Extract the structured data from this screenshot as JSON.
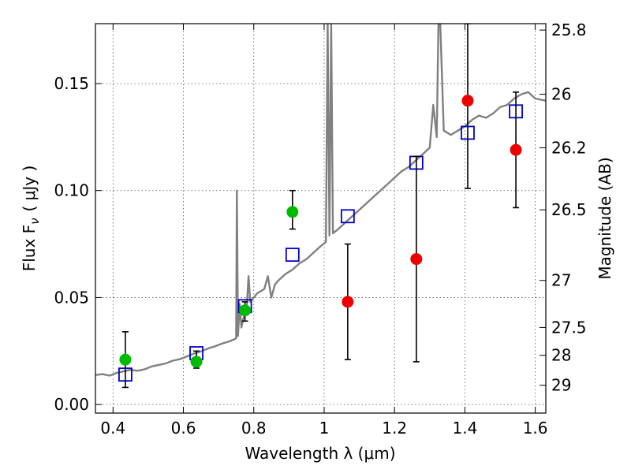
{
  "chart_data": {
    "type": "scatter",
    "xlabel": "Wavelength  λ (μm)",
    "ylabel": "Flux  F",
    "ylabel_subscript": "ν",
    "ylabel_unit": "( μJy )",
    "ylabel_right": "Magnitude (AB)",
    "xlim": [
      0.35,
      1.63
    ],
    "ylim": [
      -0.004,
      0.178
    ],
    "grid": true,
    "x_ticks": [
      0.4,
      0.6,
      0.8,
      1.0,
      1.2,
      1.4,
      1.6
    ],
    "x_tick_labels": [
      "0.4",
      "0.6",
      "0.8",
      "1",
      "1.2",
      "1.4",
      "1.6"
    ],
    "y_ticks": [
      0.0,
      0.05,
      0.1,
      0.15
    ],
    "y_tick_labels": [
      "0.00",
      "0.05",
      "0.10",
      "0.15"
    ],
    "right_ticks": [
      {
        "label": "25.8",
        "flux": 0.175
      },
      {
        "label": "26",
        "flux": 0.145
      },
      {
        "label": "26.2",
        "flux": 0.12
      },
      {
        "label": "26.5",
        "flux": 0.091
      },
      {
        "label": "27",
        "flux": 0.058
      },
      {
        "label": "27.5",
        "flux": 0.036
      },
      {
        "label": "28",
        "flux": 0.023
      },
      {
        "label": "29",
        "flux": 0.009
      }
    ],
    "series": [
      {
        "kind": "line",
        "color": "#808080",
        "points": [
          [
            0.35,
            0.0138
          ],
          [
            0.37,
            0.0142
          ],
          [
            0.39,
            0.0135
          ],
          [
            0.41,
            0.0148
          ],
          [
            0.43,
            0.0155
          ],
          [
            0.45,
            0.0162
          ],
          [
            0.47,
            0.0158
          ],
          [
            0.49,
            0.0165
          ],
          [
            0.51,
            0.0178
          ],
          [
            0.53,
            0.0185
          ],
          [
            0.55,
            0.0192
          ],
          [
            0.57,
            0.0205
          ],
          [
            0.59,
            0.0212
          ],
          [
            0.61,
            0.0225
          ],
          [
            0.63,
            0.0238
          ],
          [
            0.65,
            0.0248
          ],
          [
            0.67,
            0.0262
          ],
          [
            0.69,
            0.0272
          ],
          [
            0.71,
            0.0285
          ],
          [
            0.73,
            0.0295
          ],
          [
            0.745,
            0.0305
          ],
          [
            0.75,
            0.031
          ],
          [
            0.752,
            0.1
          ],
          [
            0.755,
            0.032
          ],
          [
            0.76,
            0.047
          ],
          [
            0.765,
            0.036
          ],
          [
            0.77,
            0.04
          ],
          [
            0.78,
            0.045
          ],
          [
            0.785,
            0.06
          ],
          [
            0.79,
            0.048
          ],
          [
            0.8,
            0.05
          ],
          [
            0.81,
            0.052
          ],
          [
            0.83,
            0.054
          ],
          [
            0.84,
            0.06
          ],
          [
            0.85,
            0.05
          ],
          [
            0.86,
            0.056
          ],
          [
            0.87,
            0.058
          ],
          [
            0.89,
            0.061
          ],
          [
            0.91,
            0.063
          ],
          [
            0.93,
            0.066
          ],
          [
            0.95,
            0.068
          ],
          [
            0.97,
            0.071
          ],
          [
            0.99,
            0.074
          ],
          [
            1.005,
            0.076
          ],
          [
            1.01,
            0.178
          ],
          [
            1.015,
            0.079
          ],
          [
            1.02,
            0.178
          ],
          [
            1.025,
            0.08
          ],
          [
            1.04,
            0.082
          ],
          [
            1.06,
            0.085
          ],
          [
            1.08,
            0.088
          ],
          [
            1.1,
            0.091
          ],
          [
            1.12,
            0.094
          ],
          [
            1.14,
            0.097
          ],
          [
            1.16,
            0.1
          ],
          [
            1.18,
            0.103
          ],
          [
            1.2,
            0.106
          ],
          [
            1.22,
            0.109
          ],
          [
            1.24,
            0.111
          ],
          [
            1.26,
            0.114
          ],
          [
            1.28,
            0.117
          ],
          [
            1.3,
            0.12
          ],
          [
            1.31,
            0.14
          ],
          [
            1.32,
            0.125
          ],
          [
            1.325,
            0.178
          ],
          [
            1.33,
            0.178
          ],
          [
            1.34,
            0.128
          ],
          [
            1.36,
            0.126
          ],
          [
            1.38,
            0.128
          ],
          [
            1.4,
            0.13
          ],
          [
            1.42,
            0.133
          ],
          [
            1.44,
            0.135
          ],
          [
            1.46,
            0.134
          ],
          [
            1.48,
            0.136
          ],
          [
            1.5,
            0.139
          ],
          [
            1.52,
            0.14
          ],
          [
            1.54,
            0.143
          ],
          [
            1.56,
            0.145
          ],
          [
            1.58,
            0.146
          ],
          [
            1.6,
            0.143
          ],
          [
            1.63,
            0.142
          ]
        ]
      },
      {
        "kind": "markers",
        "marker": "open-square",
        "color": "#0000cc",
        "points": [
          [
            0.435,
            0.014
          ],
          [
            0.637,
            0.024
          ],
          [
            0.775,
            0.046
          ],
          [
            0.91,
            0.07
          ],
          [
            1.067,
            0.088
          ],
          [
            1.262,
            0.113
          ],
          [
            1.408,
            0.127
          ],
          [
            1.545,
            0.137
          ]
        ]
      },
      {
        "kind": "markers",
        "marker": "filled-circle",
        "color": "#00bb00",
        "points": [
          {
            "x": 0.435,
            "y": 0.021,
            "lo": 0.008,
            "hi": 0.034
          },
          {
            "x": 0.637,
            "y": 0.02,
            "lo": 0.017,
            "hi": 0.025
          },
          {
            "x": 0.775,
            "y": 0.044,
            "lo": 0.039,
            "hi": 0.048
          },
          {
            "x": 0.91,
            "y": 0.09,
            "lo": 0.082,
            "hi": 0.1
          }
        ]
      },
      {
        "kind": "markers",
        "marker": "filled-circle",
        "color": "#ee0000",
        "points": [
          {
            "x": 1.067,
            "y": 0.048,
            "lo": 0.021,
            "hi": 0.075
          },
          {
            "x": 1.262,
            "y": 0.068,
            "lo": 0.02,
            "hi": 0.116
          },
          {
            "x": 1.408,
            "y": 0.142,
            "lo": 0.101,
            "hi": 0.178
          },
          {
            "x": 1.545,
            "y": 0.119,
            "lo": 0.092,
            "hi": 0.146
          }
        ]
      }
    ]
  }
}
